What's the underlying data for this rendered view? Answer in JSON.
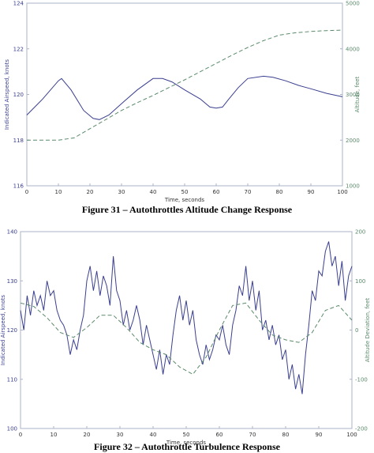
{
  "colors": {
    "airspeed": "#3a3f8f",
    "altitude": "#5a8a6a",
    "axis_left": "#3a3f8f",
    "axis_right": "#5a8a6a",
    "frame": "#aab3c8",
    "tick_text": "#333333"
  },
  "chart_data": [
    {
      "type": "line",
      "caption": "Figure 31 – Autothrottles Altitude Change Response",
      "xlabel": "Time, seconds",
      "ylabel_left": "Indicated Airspeed, knots",
      "ylabel_right": "Altitude, feet",
      "xlim": [
        0,
        100
      ],
      "ylim_left": [
        116,
        124
      ],
      "ylim_right": [
        1000,
        5000
      ],
      "xticks": [
        "0",
        "10",
        "20",
        "30",
        "40",
        "50",
        "60",
        "70",
        "80",
        "90",
        "100"
      ],
      "yticks_left": [
        "116",
        "118",
        "120",
        "122",
        "124"
      ],
      "yticks_right": [
        "1000",
        "2000",
        "3000",
        "4000",
        "5000"
      ],
      "grid": false,
      "series": [
        {
          "axis": "left",
          "style": "solid",
          "x": [
            0,
            5,
            10,
            11,
            14,
            18,
            21,
            23,
            26,
            30,
            35,
            40,
            43,
            46,
            50,
            55,
            58,
            60,
            62,
            64,
            67,
            70,
            75,
            78,
            82,
            86,
            90,
            95,
            100
          ],
          "y": [
            119.1,
            119.8,
            120.6,
            120.7,
            120.2,
            119.3,
            118.95,
            118.9,
            119.1,
            119.6,
            120.2,
            120.7,
            120.7,
            120.55,
            120.2,
            119.8,
            119.45,
            119.4,
            119.45,
            119.8,
            120.3,
            120.7,
            120.8,
            120.75,
            120.6,
            120.4,
            120.25,
            120.05,
            119.9
          ]
        },
        {
          "axis": "right",
          "style": "dashed",
          "x": [
            0,
            5,
            10,
            15,
            20,
            25,
            30,
            35,
            40,
            45,
            50,
            55,
            60,
            65,
            70,
            75,
            80,
            85,
            90,
            95,
            100
          ],
          "y": [
            2000,
            2000,
            2000,
            2050,
            2250,
            2450,
            2650,
            2820,
            2980,
            3150,
            3320,
            3500,
            3680,
            3860,
            4030,
            4180,
            4300,
            4350,
            4380,
            4400,
            4410
          ]
        }
      ]
    },
    {
      "type": "line",
      "caption": "Figure 32 – Autothrottle Turbulence Response",
      "xlabel": "Time, seconds",
      "ylabel_left": "Indicated Airspeed, knots",
      "ylabel_right": "Altitude Deviation, feet",
      "xlim": [
        0,
        100
      ],
      "ylim_left": [
        100,
        140
      ],
      "ylim_right": [
        -200,
        200
      ],
      "xticks": [
        "0",
        "10",
        "20",
        "30",
        "40",
        "50",
        "60",
        "70",
        "80",
        "90",
        "100"
      ],
      "yticks_left": [
        "100",
        "110",
        "120",
        "130",
        "140"
      ],
      "yticks_right": [
        "-200",
        "-100",
        "0",
        "100",
        "200"
      ],
      "grid": false,
      "series": [
        {
          "axis": "left",
          "style": "solid",
          "x": [
            0,
            1,
            2,
            3,
            4,
            5,
            6,
            7,
            8,
            9,
            10,
            11,
            12,
            13,
            14,
            15,
            16,
            17,
            18,
            19,
            20,
            21,
            22,
            23,
            24,
            25,
            26,
            27,
            28,
            29,
            30,
            31,
            32,
            33,
            34,
            35,
            36,
            37,
            38,
            39,
            40,
            41,
            42,
            43,
            44,
            45,
            46,
            47,
            48,
            49,
            50,
            51,
            52,
            53,
            54,
            55,
            56,
            57,
            58,
            59,
            60,
            61,
            62,
            63,
            64,
            65,
            66,
            67,
            68,
            69,
            70,
            71,
            72,
            73,
            74,
            75,
            76,
            77,
            78,
            79,
            80,
            81,
            82,
            83,
            84,
            85,
            86,
            87,
            88,
            89,
            90,
            91,
            92,
            93,
            94,
            95,
            96,
            97,
            98,
            99,
            100
          ],
          "y": [
            124,
            120,
            127,
            123,
            128,
            125,
            127,
            124,
            130,
            127,
            128,
            124,
            122,
            121,
            119,
            115,
            118,
            116,
            120,
            123,
            130,
            133,
            128,
            132,
            127,
            131,
            129,
            125,
            135,
            128,
            126,
            121,
            124,
            120,
            122,
            125,
            122,
            117,
            121,
            118,
            115,
            112,
            116,
            111,
            115,
            113,
            119,
            124,
            127,
            122,
            126,
            121,
            124,
            118,
            115,
            113,
            117,
            114,
            116,
            119,
            118,
            121,
            117,
            115,
            121,
            124,
            129,
            127,
            133,
            126,
            130,
            124,
            128,
            120,
            122,
            118,
            121,
            117,
            119,
            114,
            116,
            110,
            113,
            108,
            111,
            107,
            115,
            121,
            128,
            126,
            132,
            131,
            136,
            138,
            133,
            135,
            129,
            134,
            126,
            131,
            133
          ]
        },
        {
          "axis": "right",
          "style": "dashed",
          "x": [
            0,
            4,
            8,
            12,
            16,
            20,
            24,
            28,
            32,
            36,
            40,
            44,
            48,
            52,
            56,
            60,
            64,
            68,
            72,
            76,
            80,
            84,
            88,
            92,
            96,
            100
          ],
          "y": [
            55,
            48,
            25,
            -5,
            -15,
            5,
            30,
            30,
            5,
            -25,
            -40,
            -50,
            -75,
            -90,
            -55,
            0,
            50,
            55,
            20,
            -10,
            -20,
            -25,
            -5,
            40,
            50,
            20
          ]
        }
      ]
    }
  ]
}
